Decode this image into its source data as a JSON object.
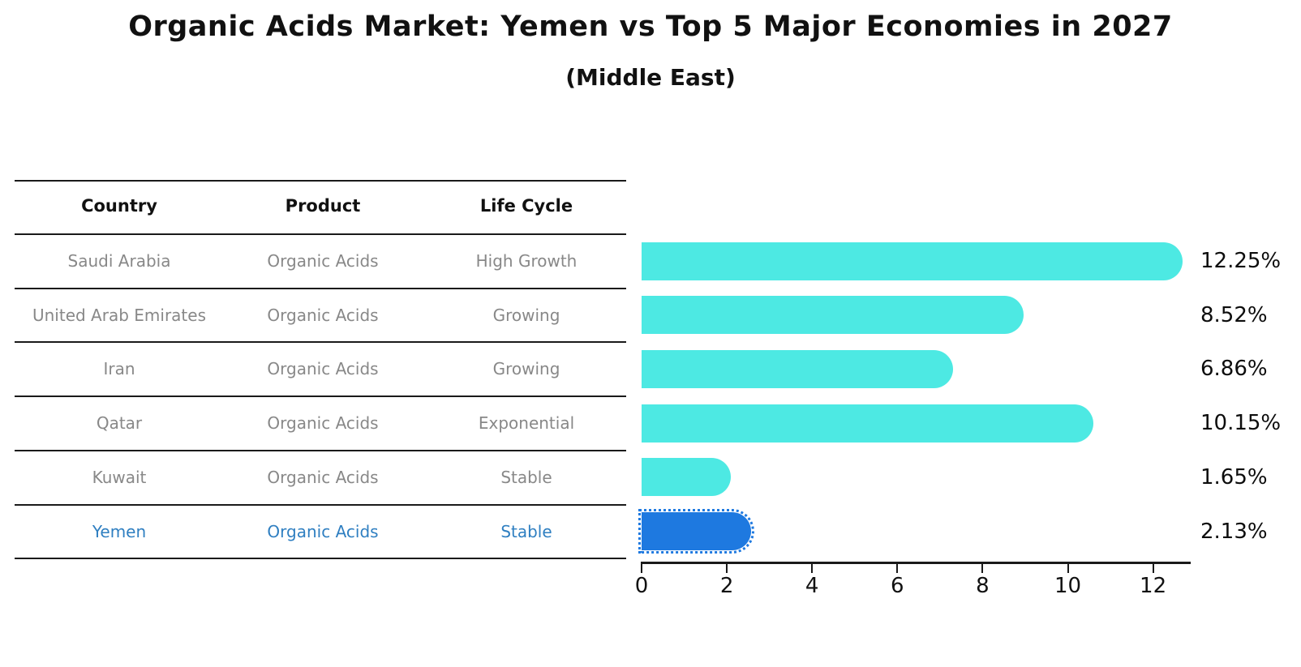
{
  "title": "Organic Acids Market: Yemen vs Top 5 Major Economies in 2027",
  "subtitle": "(Middle East)",
  "colors": {
    "bar": "#4de9e3",
    "highlight_bar": "#1e79e0",
    "highlight_outline": "#1e79e0",
    "highlight_text": "#2f7fc1",
    "row_text": "#888888",
    "header_text": "#111111",
    "line": "#1a1a1a"
  },
  "table": {
    "headers": [
      "Country",
      "Product",
      "Life Cycle"
    ],
    "rows": [
      {
        "country": "Saudi Arabia",
        "product": "Organic Acids",
        "life_cycle": "High Growth",
        "highlight": false
      },
      {
        "country": "United Arab Emirates",
        "product": "Organic Acids",
        "life_cycle": "Growing",
        "highlight": false
      },
      {
        "country": "Iran",
        "product": "Organic Acids",
        "life_cycle": "Growing",
        "highlight": false
      },
      {
        "country": "Qatar",
        "product": "Organic Acids",
        "life_cycle": "Exponential",
        "highlight": false
      },
      {
        "country": "Kuwait",
        "product": "Organic Acids",
        "life_cycle": "Stable",
        "highlight": false
      },
      {
        "country": "Yemen",
        "product": "Organic Acids",
        "life_cycle": "Stable",
        "highlight": true
      }
    ]
  },
  "chart_data": {
    "type": "bar",
    "orientation": "horizontal",
    "title": "Organic Acids Market: Yemen vs Top 5 Major Economies in 2027",
    "subtitle": "(Middle East)",
    "categories": [
      "Saudi Arabia",
      "United Arab Emirates",
      "Iran",
      "Qatar",
      "Kuwait",
      "Yemen"
    ],
    "values": [
      12.25,
      8.52,
      6.86,
      10.15,
      1.65,
      2.13
    ],
    "value_labels": [
      "12.25%",
      "8.52%",
      "6.86%",
      "10.15%",
      "1.65%",
      "2.13%"
    ],
    "unit": "%",
    "highlight_index": 5,
    "xlabel": "",
    "ylabel": "",
    "xlim": [
      0,
      12.9
    ],
    "xticks": [
      0,
      2,
      4,
      6,
      8,
      10,
      12
    ],
    "grid": false,
    "legend": false
  }
}
